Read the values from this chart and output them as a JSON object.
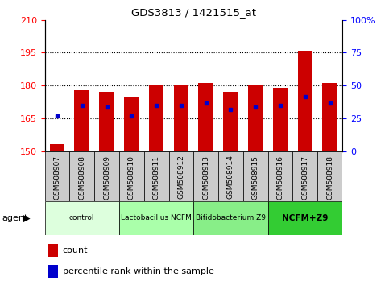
{
  "title": "GDS3813 / 1421515_at",
  "categories": [
    "GSM508907",
    "GSM508908",
    "GSM508909",
    "GSM508910",
    "GSM508911",
    "GSM508912",
    "GSM508913",
    "GSM508914",
    "GSM508915",
    "GSM508916",
    "GSM508917",
    "GSM508918"
  ],
  "bar_values": [
    153,
    178,
    177,
    175,
    180,
    180,
    181,
    177,
    180,
    179,
    196,
    181
  ],
  "bar_base": 150,
  "percentile_values": [
    166,
    171,
    170,
    166,
    171,
    171,
    172,
    169,
    170,
    171,
    175,
    172
  ],
  "bar_color": "#cc0000",
  "percentile_color": "#0000cc",
  "ylim_left": [
    150,
    210
  ],
  "ylim_right": [
    0,
    100
  ],
  "yticks_left": [
    150,
    165,
    180,
    195,
    210
  ],
  "yticks_right": [
    0,
    25,
    50,
    75,
    100
  ],
  "yticklabels_right": [
    "0",
    "25",
    "50",
    "75",
    "100%"
  ],
  "gridlines": [
    165,
    180,
    195
  ],
  "agent_groups": [
    {
      "label": "control",
      "start": 0,
      "end": 3,
      "color": "#ddffdd"
    },
    {
      "label": "Lactobacillus NCFM",
      "start": 3,
      "end": 6,
      "color": "#aaffaa"
    },
    {
      "label": "Bifidobacterium Z9",
      "start": 6,
      "end": 9,
      "color": "#88ee88"
    },
    {
      "label": "NCFM+Z9",
      "start": 9,
      "end": 12,
      "color": "#33cc33"
    }
  ],
  "legend_count_label": "count",
  "legend_percentile_label": "percentile rank within the sample",
  "xlabel_agent": "agent",
  "background_color": "#ffffff",
  "tick_area_bg": "#cccccc",
  "tick_area_border": "#888888"
}
